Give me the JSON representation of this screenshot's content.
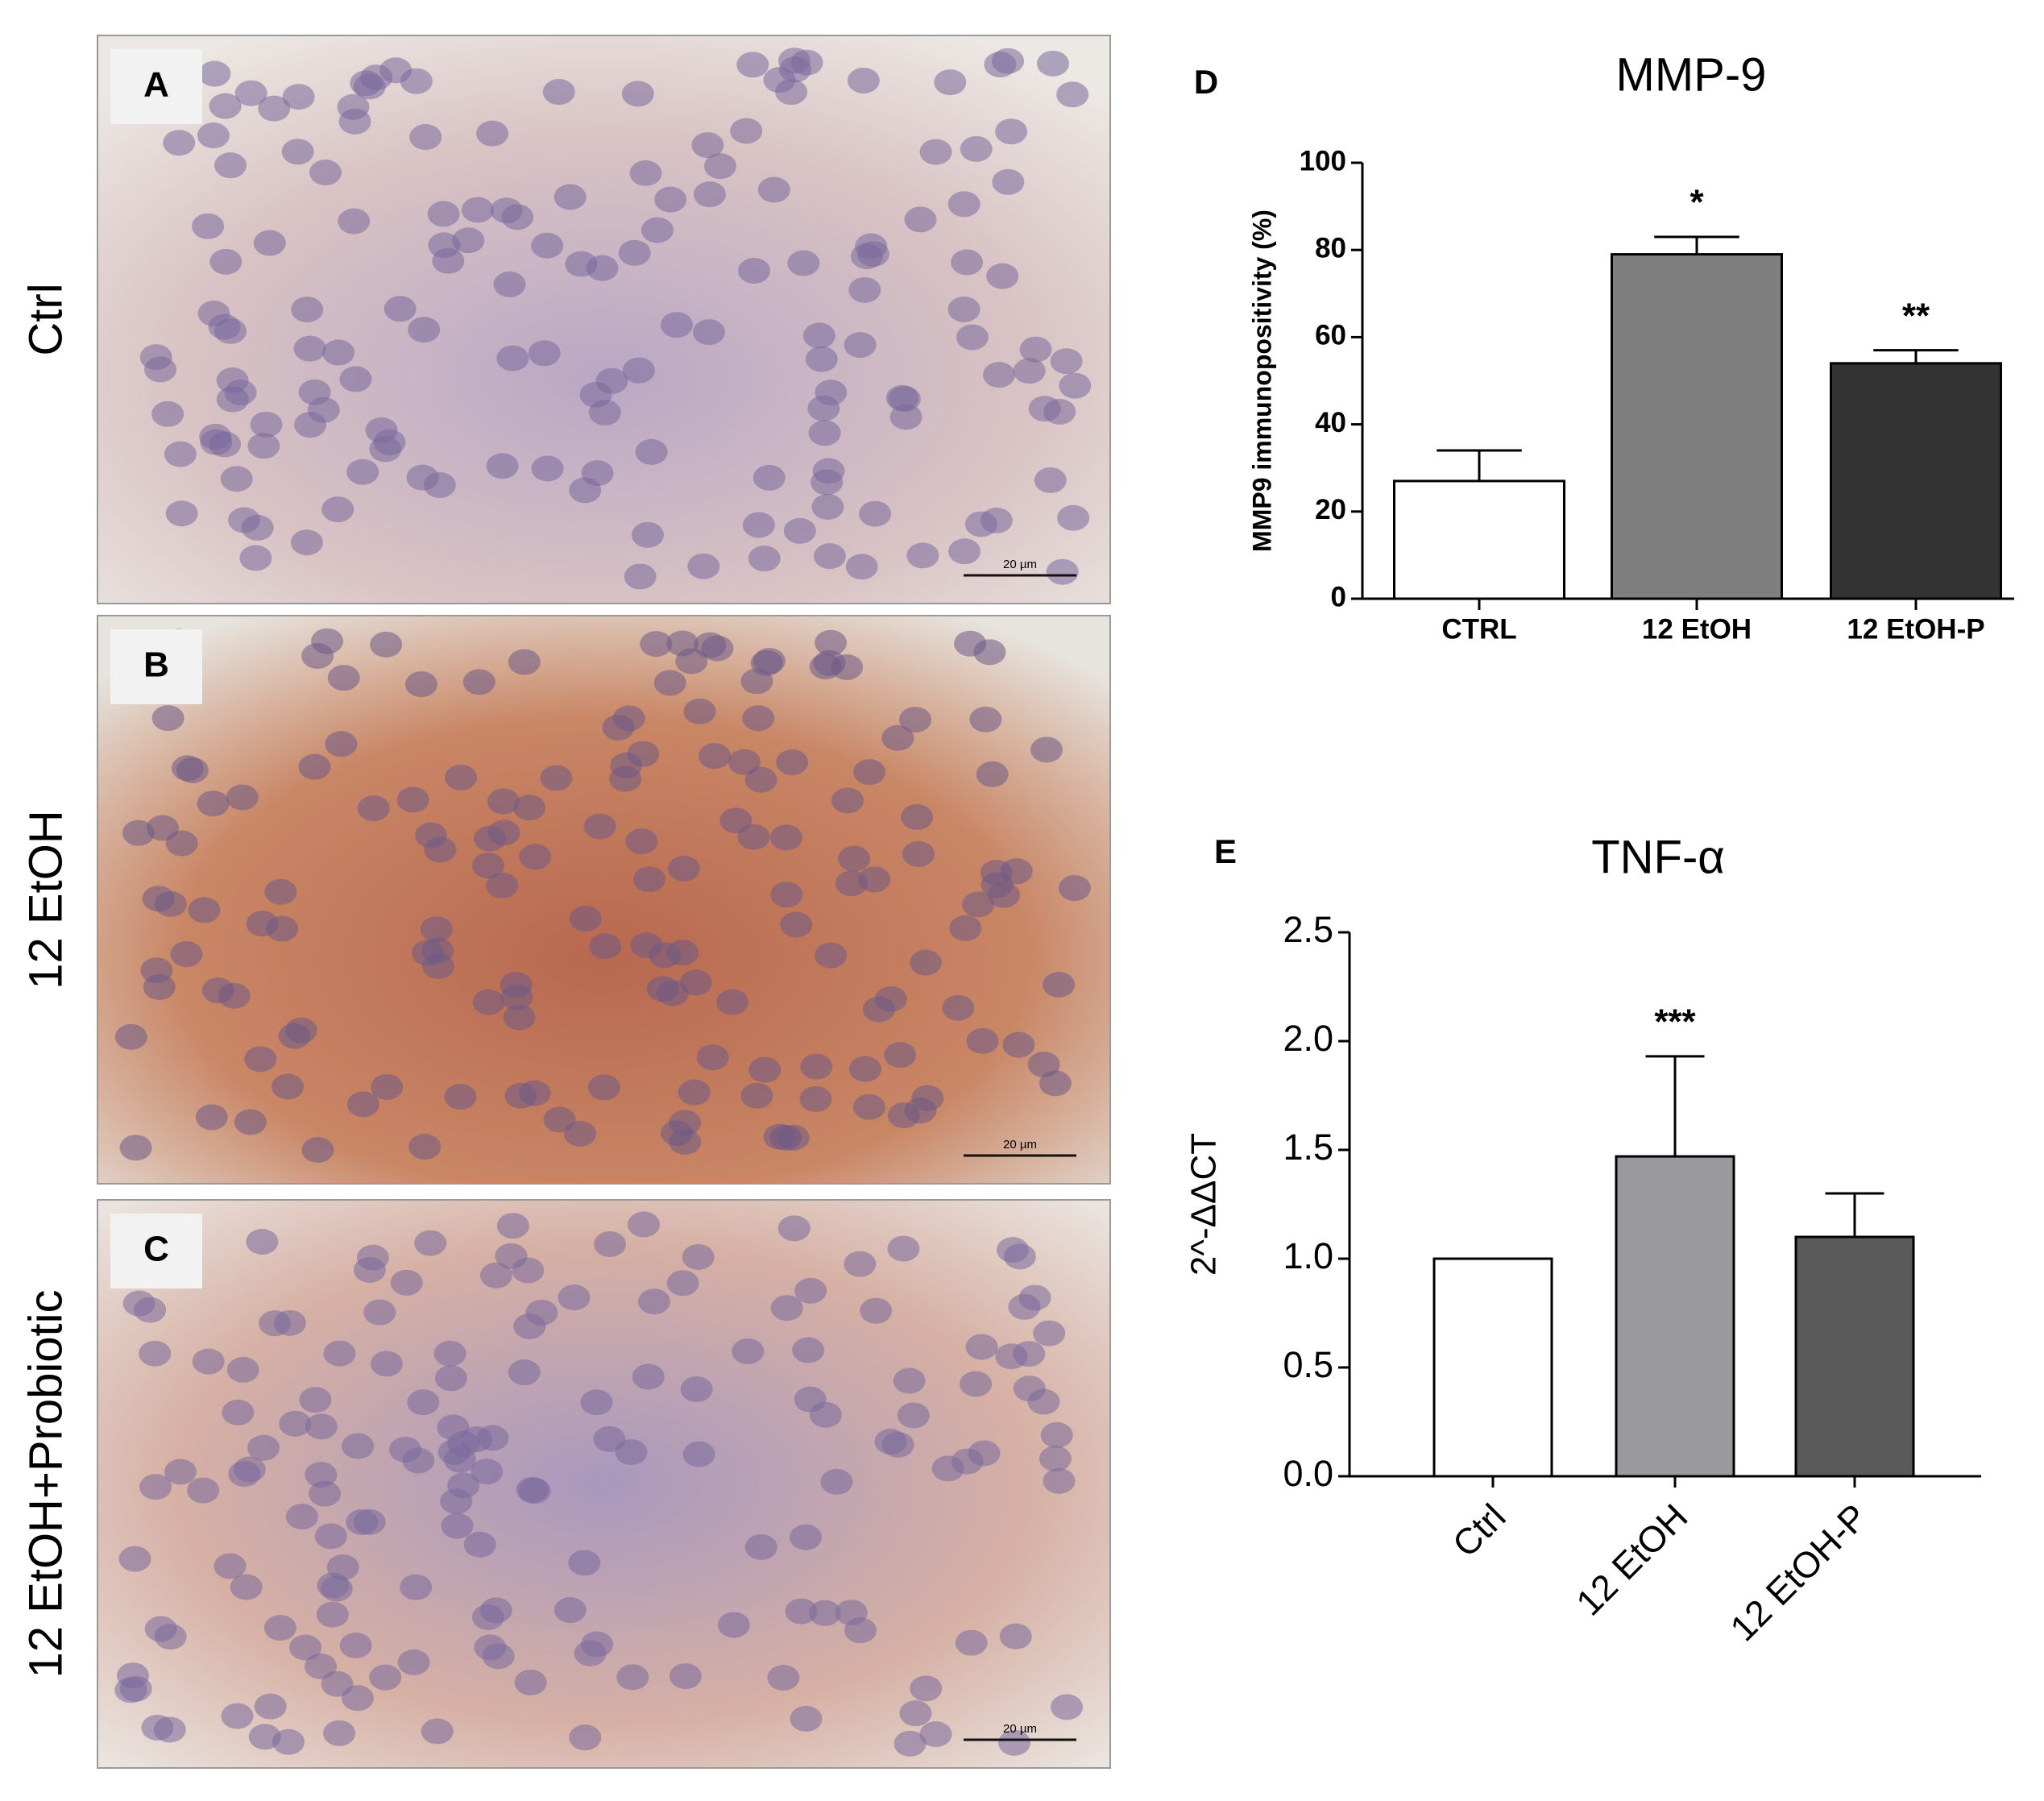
{
  "panels": [
    {
      "letter": "A",
      "row_label": "Ctrl",
      "scale_bar": "20 µm"
    },
    {
      "letter": "B",
      "row_label": "12 EtOH",
      "scale_bar": "20 µm"
    },
    {
      "letter": "C",
      "row_label": "12 EtOH+Probiotic",
      "scale_bar": "20 µm"
    }
  ],
  "chart_data": [
    {
      "type": "bar",
      "panel": "D",
      "title": "MMP-9",
      "y_label": "MMP9 immunopositivity (%)",
      "categories": [
        "CTRL",
        "12 EtOH",
        "12 EtOH-P"
      ],
      "values": [
        27,
        79,
        54
      ],
      "errors": [
        7,
        4,
        3
      ],
      "significance": [
        null,
        "*",
        "**"
      ],
      "colors": [
        "#ffffff",
        "#7f7f7f",
        "#333333"
      ],
      "ylim": [
        0,
        100
      ],
      "yticks": [
        0,
        20,
        40,
        60,
        80,
        100
      ],
      "rotate_labels": false
    },
    {
      "type": "bar",
      "panel": "E",
      "title": "TNF-α",
      "y_label": "2^-ΔΔCT",
      "categories": [
        "Ctrl",
        "12 EtOH",
        "12 EtOH-P"
      ],
      "values": [
        1.0,
        1.47,
        1.1
      ],
      "errors": [
        0,
        0.46,
        0.2
      ],
      "significance": [
        null,
        "***",
        null
      ],
      "colors": [
        "#ffffff",
        "#9a9a9e",
        "#5a5a5a"
      ],
      "ylim": [
        0,
        2.5
      ],
      "yticks": [
        {
          "value": 0,
          "label": "0.0"
        },
        0.5,
        {
          "value": 1,
          "label": "1.0"
        },
        1.5,
        {
          "value": 2,
          "label": "2.0"
        },
        2.5
      ],
      "rotate_labels": true
    }
  ]
}
